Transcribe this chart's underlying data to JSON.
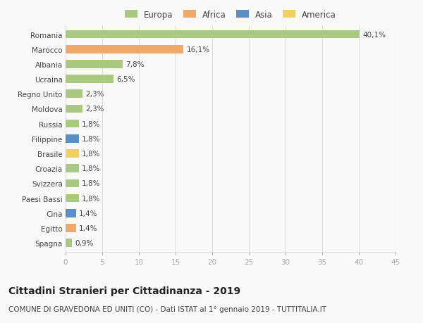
{
  "categories": [
    "Romania",
    "Marocco",
    "Albania",
    "Ucraina",
    "Regno Unito",
    "Moldova",
    "Russia",
    "Filippine",
    "Brasile",
    "Croazia",
    "Svizzera",
    "Paesi Bassi",
    "Cina",
    "Egitto",
    "Spagna"
  ],
  "values": [
    40.1,
    16.1,
    7.8,
    6.5,
    2.3,
    2.3,
    1.8,
    1.8,
    1.8,
    1.8,
    1.8,
    1.8,
    1.4,
    1.4,
    0.9
  ],
  "labels": [
    "40,1%",
    "16,1%",
    "7,8%",
    "6,5%",
    "2,3%",
    "2,3%",
    "1,8%",
    "1,8%",
    "1,8%",
    "1,8%",
    "1,8%",
    "1,8%",
    "1,4%",
    "1,4%",
    "0,9%"
  ],
  "continents": [
    "Europa",
    "Africa",
    "Europa",
    "Europa",
    "Europa",
    "Europa",
    "Europa",
    "Asia",
    "America",
    "Europa",
    "Europa",
    "Europa",
    "Asia",
    "Africa",
    "Europa"
  ],
  "continent_colors": {
    "Europa": "#a8c97f",
    "Africa": "#f0a868",
    "Asia": "#5b8ec4",
    "America": "#f0d060"
  },
  "legend_order": [
    "Europa",
    "Africa",
    "Asia",
    "America"
  ],
  "xlim": [
    0,
    45
  ],
  "xticks": [
    0,
    5,
    10,
    15,
    20,
    25,
    30,
    35,
    40,
    45
  ],
  "title": "Cittadini Stranieri per Cittadinanza - 2019",
  "subtitle": "COMUNE DI GRAVEDONA ED UNITI (CO) - Dati ISTAT al 1° gennaio 2019 - TUTTITALIA.IT",
  "background_color": "#f9f9f9",
  "grid_color": "#dddddd",
  "bar_height": 0.55,
  "title_fontsize": 10,
  "subtitle_fontsize": 7.5,
  "label_fontsize": 7.5,
  "tick_fontsize": 7.5,
  "legend_fontsize": 8.5
}
